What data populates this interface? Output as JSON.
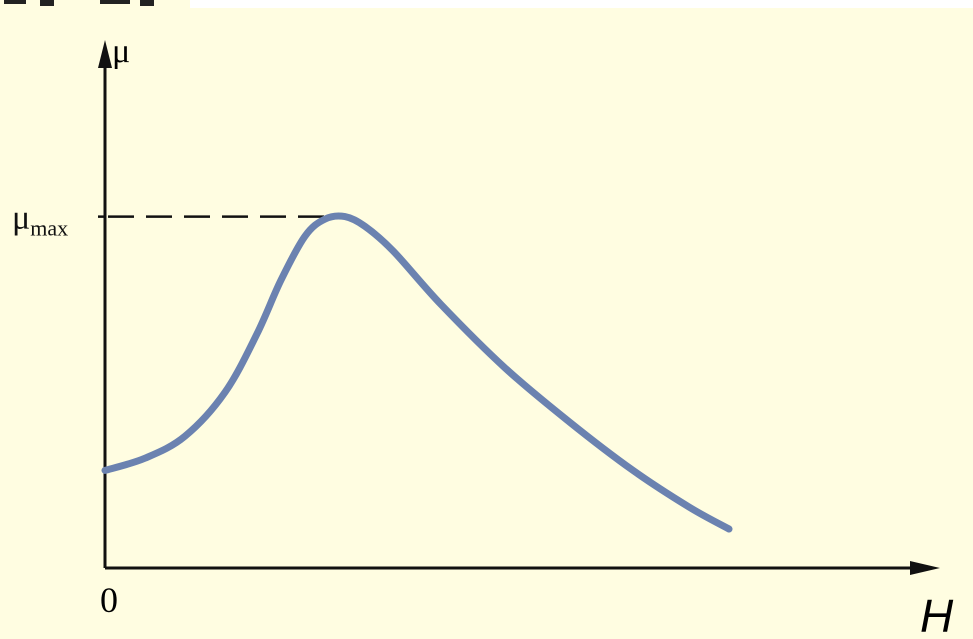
{
  "colors": {
    "background": "#fffde1",
    "axis": "#111111",
    "curve": "#6b82b0",
    "top_strip": "#ffffff"
  },
  "chart_data": {
    "type": "line",
    "title": "",
    "xlabel": "H",
    "ylabel": "μ",
    "origin_label": "0",
    "marker_label": "μmax",
    "marker_label_base": "μ",
    "marker_label_sub": "max",
    "xlim": [
      0,
      10
    ],
    "ylim": [
      0,
      10
    ],
    "grid": false,
    "peak": {
      "x": 2.85,
      "y": 7.2
    },
    "series": [
      {
        "x": [
          0.0,
          0.5,
          1.0,
          1.5,
          1.9,
          2.2,
          2.5,
          2.75,
          3.0,
          3.25,
          3.6,
          4.2,
          5.0,
          5.8,
          6.6,
          7.3,
          7.8
        ],
        "y": [
          2.0,
          2.25,
          2.7,
          3.6,
          4.8,
          5.9,
          6.8,
          7.15,
          7.2,
          7.0,
          6.5,
          5.4,
          4.1,
          3.0,
          2.0,
          1.25,
          0.8
        ]
      }
    ]
  }
}
